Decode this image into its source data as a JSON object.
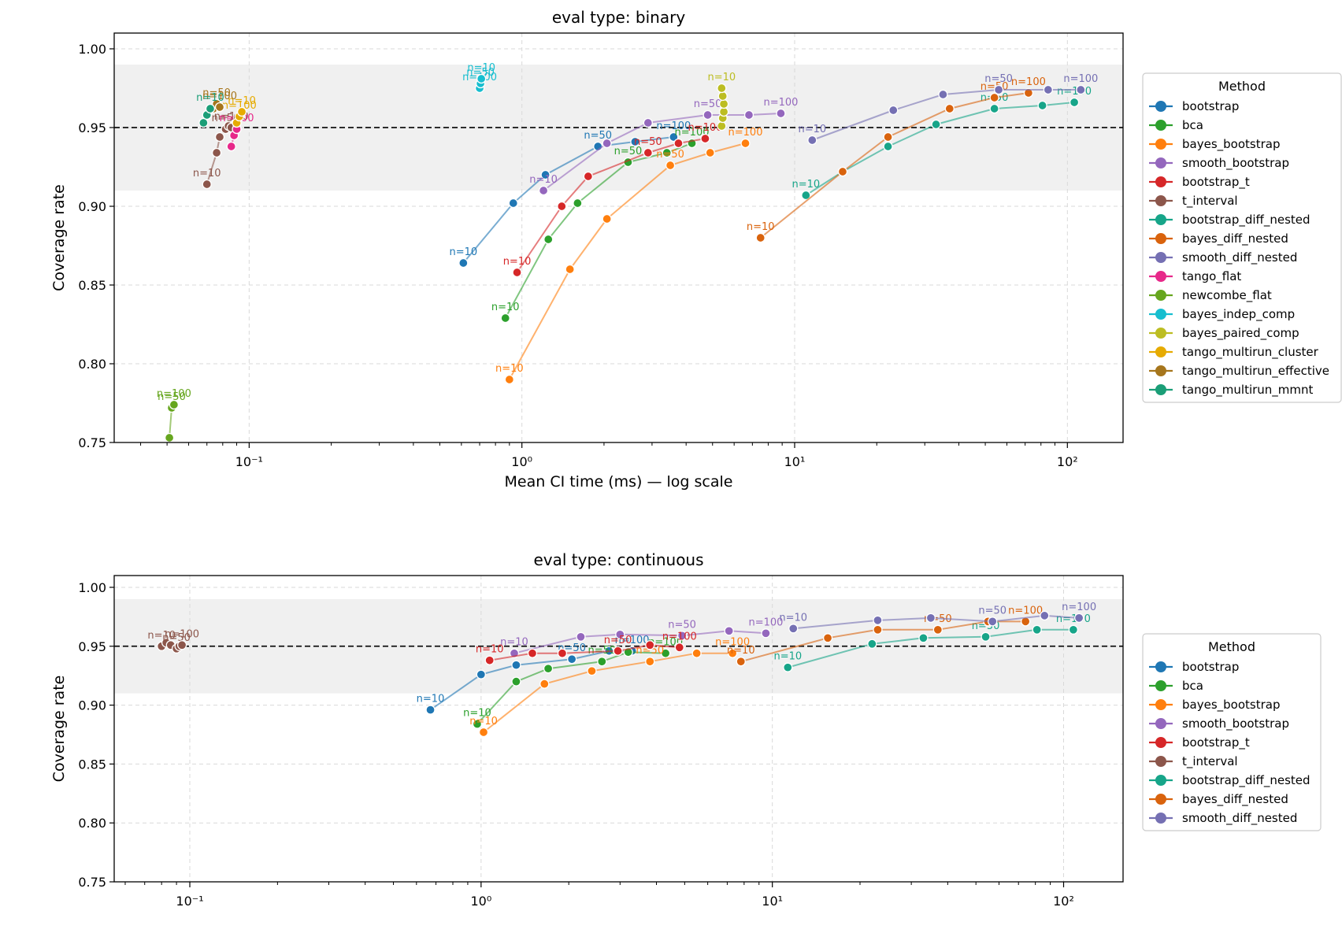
{
  "chart_data": [
    {
      "type": "line",
      "title": "eval type: binary",
      "xlabel": "Mean CI time (ms) — log scale",
      "ylabel": "Coverage rate",
      "x_scale": "log",
      "xlim": [
        0.032,
        160
      ],
      "ylim": [
        0.75,
        1.01
      ],
      "x_ticks": [
        0.1,
        1,
        10,
        100
      ],
      "x_tick_labels": [
        "10⁻¹",
        "10⁰",
        "10¹",
        "10²"
      ],
      "y_ticks": [
        0.75,
        0.8,
        0.85,
        0.9,
        0.95,
        1.0
      ],
      "y_tick_labels": [
        "0.75",
        "0.80",
        "0.85",
        "0.90",
        "0.95",
        "1.00"
      ],
      "grid": true,
      "reference_line": 0.95,
      "shaded_band": [
        0.91,
        0.99
      ],
      "legend": {
        "title": "Method",
        "placement": "right"
      },
      "series": [
        {
          "name": "bootstrap",
          "color": "#1f77b4",
          "x": [
            0.61,
            0.93,
            1.22,
            1.9,
            2.6,
            3.6
          ],
          "y": [
            0.864,
            0.902,
            0.92,
            0.938,
            0.941,
            0.944
          ],
          "labels": [
            "n=10",
            "",
            "",
            "n=50",
            "",
            "n=100"
          ]
        },
        {
          "name": "bca",
          "color": "#2ca02c",
          "x": [
            0.87,
            1.25,
            1.6,
            2.45,
            3.4,
            4.2
          ],
          "y": [
            0.829,
            0.879,
            0.902,
            0.928,
            0.934,
            0.94
          ],
          "labels": [
            "n=10",
            "",
            "",
            "n=50",
            "",
            "n=100"
          ]
        },
        {
          "name": "bayes_bootstrap",
          "color": "#ff7f0e",
          "x": [
            0.9,
            1.5,
            2.05,
            3.5,
            4.9,
            6.6
          ],
          "y": [
            0.79,
            0.86,
            0.892,
            0.926,
            0.934,
            0.94
          ],
          "labels": [
            "n=10",
            "",
            "",
            "n=50",
            "",
            "n=100"
          ]
        },
        {
          "name": "smooth_bootstrap",
          "color": "#9467bd",
          "x": [
            1.2,
            2.05,
            2.9,
            4.8,
            6.8,
            8.9
          ],
          "y": [
            0.91,
            0.94,
            0.953,
            0.958,
            0.958,
            0.959
          ],
          "labels": [
            "n=10",
            "",
            "",
            "n=50",
            "",
            "n=100"
          ]
        },
        {
          "name": "bootstrap_t",
          "color": "#d62728",
          "x": [
            0.96,
            1.4,
            1.75,
            2.9,
            3.75,
            4.7
          ],
          "y": [
            0.858,
            0.9,
            0.919,
            0.934,
            0.94,
            0.943
          ],
          "labels": [
            "n=10",
            "",
            "",
            "n=50",
            "",
            "n=100"
          ]
        },
        {
          "name": "t_interval",
          "color": "#8c564b",
          "x": [
            0.07,
            0.076,
            0.078,
            0.082,
            0.084,
            0.086
          ],
          "y": [
            0.914,
            0.934,
            0.944,
            0.949,
            0.951,
            0.95
          ],
          "labels": [
            "n=10",
            "",
            "",
            "n=50",
            "",
            "n=100"
          ]
        },
        {
          "name": "bootstrap_diff_nested",
          "color": "#17a589",
          "x": [
            11,
            15,
            22,
            33,
            54,
            81,
            106
          ],
          "y": [
            0.907,
            0.922,
            0.938,
            0.952,
            0.962,
            0.964,
            0.966
          ],
          "labels": [
            "n=10",
            "",
            "",
            "",
            "n=50",
            "",
            "n=100"
          ]
        },
        {
          "name": "bayes_diff_nested",
          "color": "#d9630d",
          "x": [
            7.5,
            15,
            22,
            37,
            54,
            72
          ],
          "y": [
            0.88,
            0.922,
            0.944,
            0.962,
            0.969,
            0.972
          ],
          "labels": [
            "n=10",
            "",
            "",
            "",
            "n=50",
            "n=100"
          ]
        },
        {
          "name": "smooth_diff_nested",
          "color": "#7570b3",
          "x": [
            11.6,
            23,
            35,
            56,
            85,
            112
          ],
          "y": [
            0.942,
            0.961,
            0.971,
            0.974,
            0.974,
            0.974
          ],
          "labels": [
            "n=10",
            "",
            "",
            "n=50",
            "",
            "n=100"
          ]
        },
        {
          "name": "tango_flat",
          "color": "#e7298a",
          "x": [
            0.086,
            0.088,
            0.09
          ],
          "y": [
            0.938,
            0.945,
            0.949
          ],
          "labels": [
            "",
            "",
            "n=100"
          ]
        },
        {
          "name": "newcombe_flat",
          "color": "#66a61e",
          "x": [
            0.051,
            0.052,
            0.053
          ],
          "y": [
            0.753,
            0.772,
            0.774
          ],
          "labels": [
            "",
            "n=50",
            "n=100"
          ]
        },
        {
          "name": "bayes_indep_comp",
          "color": "#17becf",
          "x": [
            0.7,
            0.705,
            0.71
          ],
          "y": [
            0.975,
            0.978,
            0.981
          ],
          "labels": [
            "n=100",
            "n=50",
            "n=10"
          ]
        },
        {
          "name": "bayes_paired_comp",
          "color": "#bcbd22",
          "x": [
            5.4,
            5.45,
            5.5,
            5.5,
            5.45,
            5.4
          ],
          "y": [
            0.951,
            0.956,
            0.96,
            0.965,
            0.97,
            0.975
          ],
          "labels": [
            "",
            "",
            "",
            "",
            "",
            "n=10"
          ]
        },
        {
          "name": "tango_multirun_cluster",
          "color": "#e6ab02",
          "x": [
            0.09,
            0.092,
            0.094
          ],
          "y": [
            0.953,
            0.957,
            0.96
          ],
          "labels": [
            "",
            "n=100",
            "n=10"
          ]
        },
        {
          "name": "tango_multirun_effective",
          "color": "#a6761d",
          "x": [
            0.074,
            0.076,
            0.078
          ],
          "y": [
            0.962,
            0.965,
            0.963
          ],
          "labels": [
            "",
            "n=50",
            "n=100"
          ]
        },
        {
          "name": "tango_multirun_mmnt",
          "color": "#1b9e77",
          "x": [
            0.068,
            0.07,
            0.072
          ],
          "y": [
            0.953,
            0.958,
            0.962
          ],
          "labels": [
            "",
            "",
            "n=10"
          ]
        }
      ]
    },
    {
      "type": "line",
      "title": "eval type: continuous",
      "xlabel": "",
      "ylabel": "Coverage rate",
      "x_scale": "log",
      "xlim": [
        0.055,
        160
      ],
      "ylim": [
        0.75,
        1.01
      ],
      "x_ticks": [
        0.1,
        1,
        10,
        100
      ],
      "x_tick_labels": [
        "10⁻¹",
        "10⁰",
        "10¹",
        "10²"
      ],
      "y_ticks": [
        0.75,
        0.8,
        0.85,
        0.9,
        0.95,
        1.0
      ],
      "y_tick_labels": [
        "0.75",
        "0.80",
        "0.85",
        "0.90",
        "0.95",
        "1.00"
      ],
      "grid": true,
      "reference_line": 0.95,
      "shaded_band": [
        0.91,
        0.99
      ],
      "legend": {
        "title": "Method",
        "placement": "right"
      },
      "series": [
        {
          "name": "bootstrap",
          "color": "#1f77b4",
          "x": [
            0.67,
            1.0,
            1.32,
            2.05,
            2.75,
            3.3
          ],
          "y": [
            0.896,
            0.926,
            0.934,
            0.939,
            0.946,
            0.946
          ],
          "labels": [
            "n=10",
            "",
            "",
            "n=50",
            "",
            "n=100"
          ]
        },
        {
          "name": "bca",
          "color": "#2ca02c",
          "x": [
            0.97,
            1.32,
            1.7,
            2.6,
            3.2,
            4.3
          ],
          "y": [
            0.884,
            0.92,
            0.931,
            0.937,
            0.945,
            0.944
          ],
          "labels": [
            "n=10",
            "",
            "",
            "n=50",
            "",
            "n=100"
          ]
        },
        {
          "name": "bayes_bootstrap",
          "color": "#ff7f0e",
          "x": [
            1.02,
            1.65,
            2.4,
            3.8,
            5.5,
            7.3
          ],
          "y": [
            0.877,
            0.918,
            0.929,
            0.937,
            0.944,
            0.944
          ],
          "labels": [
            "n=10",
            "",
            "",
            "n=50",
            "",
            "n=100"
          ]
        },
        {
          "name": "smooth_bootstrap",
          "color": "#9467bd",
          "x": [
            1.3,
            2.2,
            3.0,
            4.9,
            7.1,
            9.5
          ],
          "y": [
            0.944,
            0.958,
            0.96,
            0.959,
            0.963,
            0.961
          ],
          "labels": [
            "n=10",
            "",
            "",
            "n=50",
            "",
            "n=100"
          ]
        },
        {
          "name": "bootstrap_t",
          "color": "#d62728",
          "x": [
            1.07,
            1.5,
            1.9,
            2.95,
            3.8,
            4.8
          ],
          "y": [
            0.938,
            0.944,
            0.944,
            0.946,
            0.951,
            0.949
          ],
          "labels": [
            "n=10",
            "",
            "",
            "n=50",
            "",
            "n=100"
          ]
        },
        {
          "name": "t_interval",
          "color": "#8c564b",
          "x": [
            0.08,
            0.083,
            0.086,
            0.09,
            0.092,
            0.094
          ],
          "y": [
            0.95,
            0.953,
            0.951,
            0.948,
            0.95,
            0.951
          ],
          "labels": [
            "n=10",
            "",
            "",
            "n=50",
            "",
            "n=100"
          ]
        },
        {
          "name": "bootstrap_diff_nested",
          "color": "#17a589",
          "x": [
            11.3,
            22,
            33,
            54,
            81,
            108
          ],
          "y": [
            0.932,
            0.952,
            0.957,
            0.958,
            0.964,
            0.964
          ],
          "labels": [
            "n=10",
            "",
            "",
            "n=50",
            "",
            "n=100"
          ]
        },
        {
          "name": "bayes_diff_nested",
          "color": "#d9630d",
          "x": [
            7.8,
            15.5,
            23,
            37,
            55,
            74
          ],
          "y": [
            0.937,
            0.957,
            0.964,
            0.964,
            0.971,
            0.971
          ],
          "labels": [
            "n=10",
            "",
            "",
            "n=50",
            "",
            "n=100"
          ]
        },
        {
          "name": "smooth_diff_nested",
          "color": "#7570b3",
          "x": [
            11.8,
            23,
            35,
            57,
            86,
            113
          ],
          "y": [
            0.965,
            0.972,
            0.974,
            0.971,
            0.976,
            0.974
          ],
          "labels": [
            "n=10",
            "",
            "",
            "n=50",
            "",
            "n=100"
          ]
        }
      ]
    }
  ]
}
